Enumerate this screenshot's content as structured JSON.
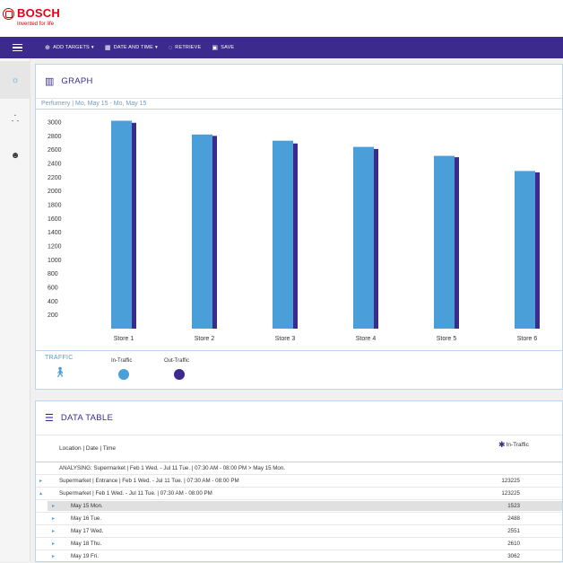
{
  "brand": {
    "name": "BOSCH",
    "tagline": "Invented for life",
    "color": "#e20015"
  },
  "navbar": {
    "items": [
      {
        "icon": "plus-circle-icon",
        "label": "ADD TARGETS",
        "caret": "▾"
      },
      {
        "icon": "calendar-icon",
        "label": "DATE AND TIME",
        "caret": "▾"
      },
      {
        "icon": "refresh-icon",
        "label": "RETRIEVE",
        "caret": ""
      },
      {
        "icon": "save-icon",
        "label": "SAVE",
        "caret": ""
      }
    ],
    "color": "#3c2a8c"
  },
  "sidebar": {
    "items": [
      {
        "icon": "lightbulb-icon",
        "active": true
      },
      {
        "icon": "hierarchy-icon",
        "active": false
      },
      {
        "icon": "user-circle-icon",
        "active": false
      }
    ]
  },
  "graph": {
    "title": "GRAPH",
    "subtitle": "Perfumery | Mo, May 15 - Mo, May 15",
    "legend": {
      "label": "TRAFFIC",
      "items": [
        {
          "name": "In-Traffic",
          "color": "#4a9fd8"
        },
        {
          "name": "Out-Traffic",
          "color": "#3c2a8c"
        }
      ]
    }
  },
  "chart_data": {
    "type": "bar",
    "categories": [
      "Store 1",
      "Store 2",
      "Store 3",
      "Store 4",
      "Store 5",
      "Store 6"
    ],
    "series": [
      {
        "name": "In-Traffic",
        "values": [
          3020,
          2820,
          2730,
          2640,
          2510,
          2290
        ],
        "color": "#4a9fd8"
      },
      {
        "name": "Out-Traffic",
        "values": [
          2990,
          2800,
          2690,
          2610,
          2490,
          2270
        ],
        "color": "#3c2a8c"
      }
    ],
    "yticks": [
      200,
      400,
      600,
      800,
      1000,
      1200,
      1400,
      1600,
      1800,
      2000,
      2200,
      2400,
      2600,
      2800,
      3000
    ],
    "ylim": [
      0,
      3000
    ],
    "grid": false,
    "legend": "bottom"
  },
  "table": {
    "title": "DATA TABLE",
    "columns": {
      "location": "Location | Date | Time",
      "in_traffic": "In-Traffic"
    },
    "analysing": "ANALYSING:   Supermarket | Feb 1 Wed. - Jul 11 Tue. | 07:30 AM - 08:00 PM > May 15 Mon.",
    "rows": [
      {
        "label": "Supermarket | Entrance | Feb 1 Wed. - Jul 11 Tue. | 07:30 AM - 08:00 PM",
        "value": "123225",
        "arrow": "▸",
        "level": 0,
        "highlight": false
      },
      {
        "label": "Supermarket | Feb 1 Wed. - Jul 11 Tue. | 07:30 AM - 08:00 PM",
        "value": "123225",
        "arrow": "▴",
        "level": 0,
        "highlight": false
      },
      {
        "label": "May 15 Mon.",
        "value": "1523",
        "arrow": "▸",
        "level": 1,
        "highlight": true
      },
      {
        "label": "May 16 Tue.",
        "value": "2488",
        "arrow": "▸",
        "level": 1,
        "highlight": false
      },
      {
        "label": "May 17 Wed.",
        "value": "2551",
        "arrow": "▸",
        "level": 1,
        "highlight": false
      },
      {
        "label": "May 18 Thu.",
        "value": "2610",
        "arrow": "▸",
        "level": 1,
        "highlight": false
      },
      {
        "label": "May 19 Fri.",
        "value": "3062",
        "arrow": "▸",
        "level": 1,
        "highlight": false
      }
    ]
  }
}
